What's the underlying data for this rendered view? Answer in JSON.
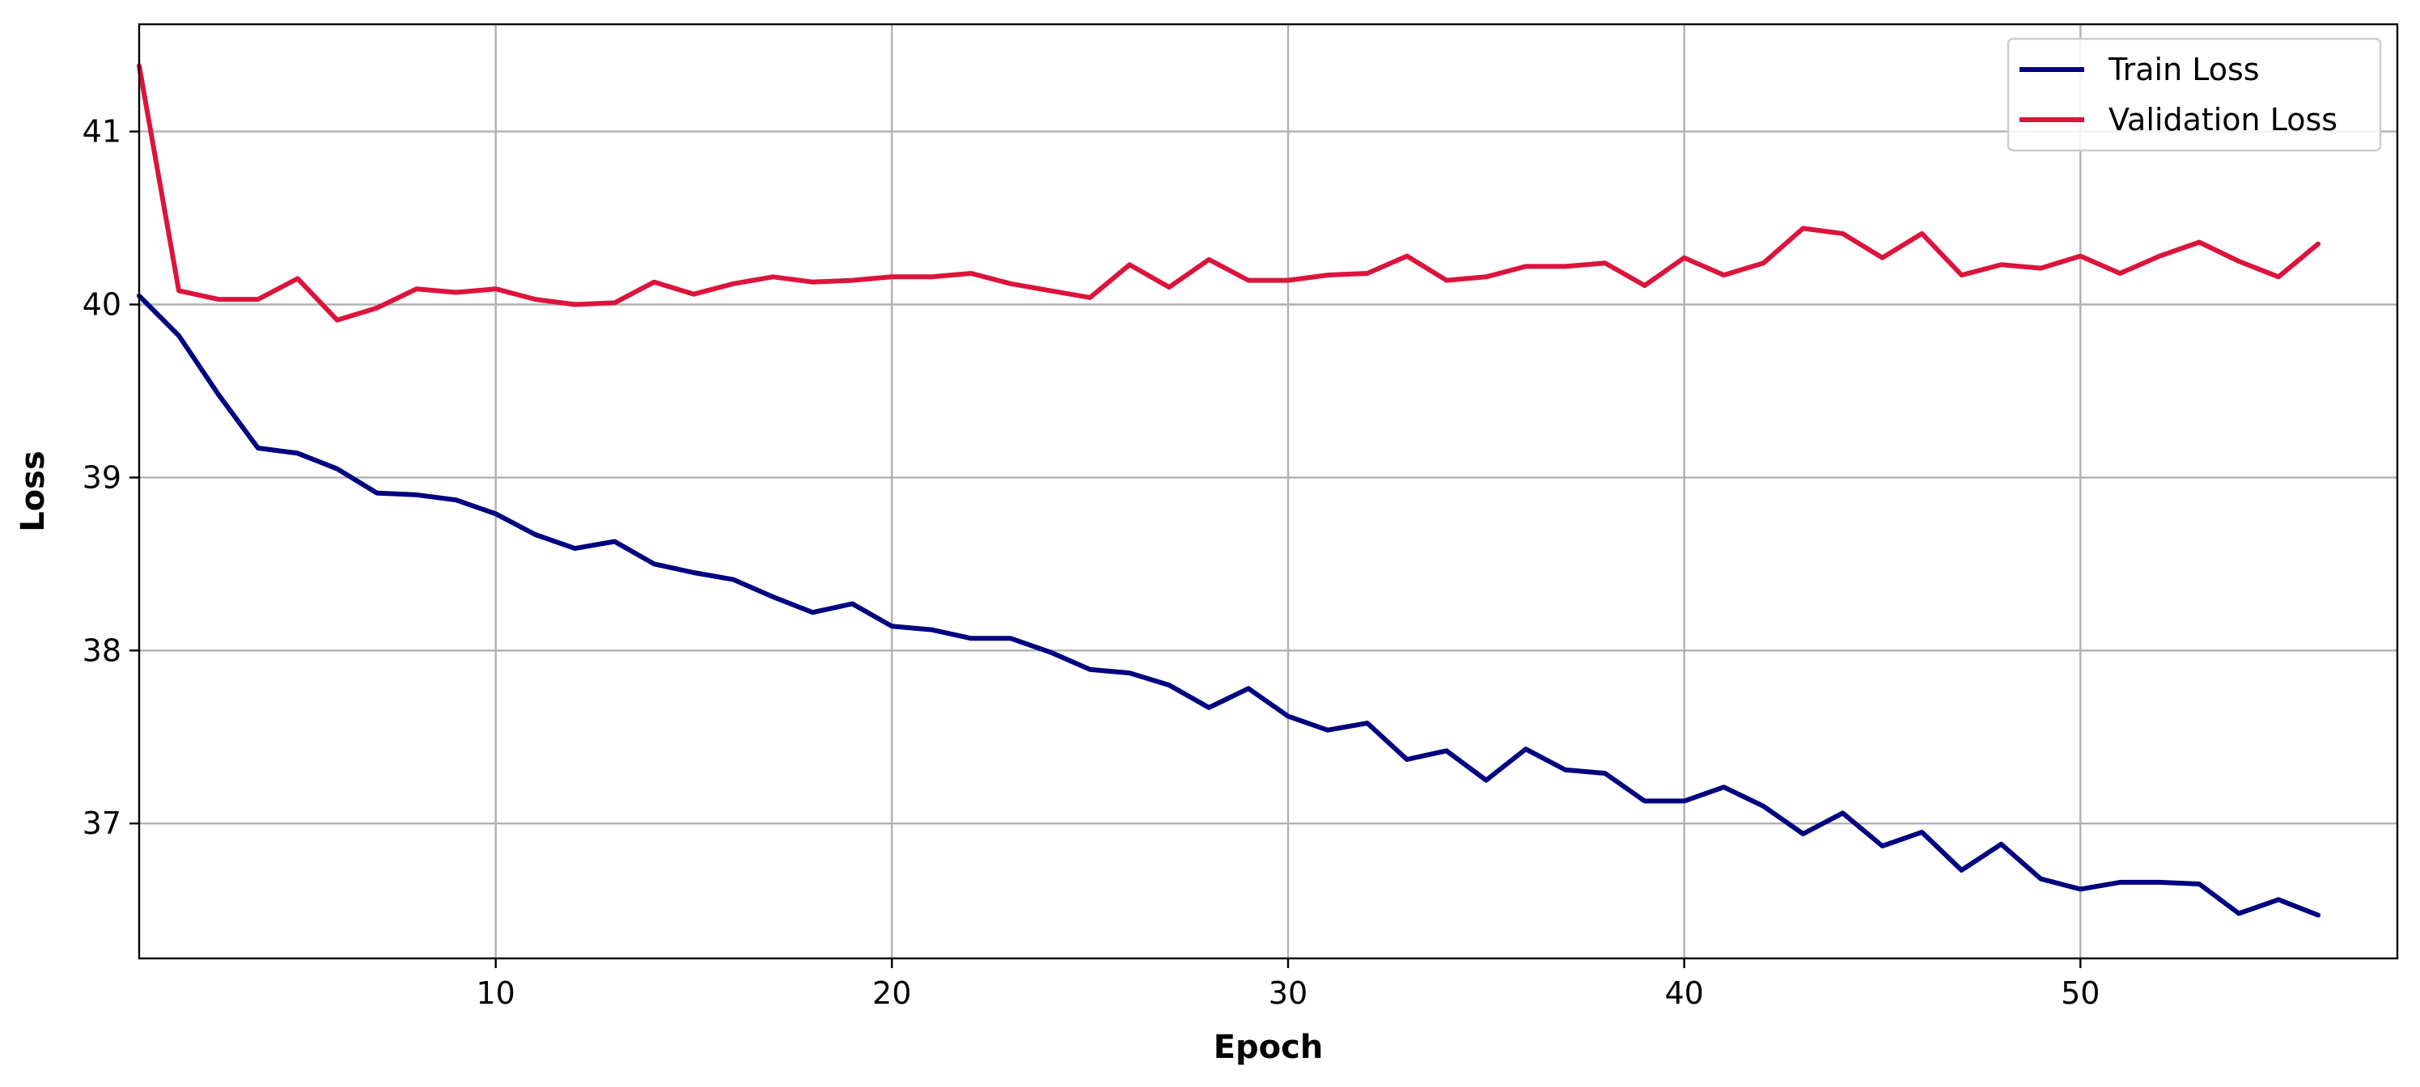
{
  "chart_data": {
    "type": "line",
    "title": "",
    "xlabel": "Epoch",
    "ylabel": "Loss",
    "xlim": [
      1,
      58
    ],
    "ylim": [
      36.22,
      41.62
    ],
    "xticks": [
      10,
      20,
      30,
      40,
      50
    ],
    "yticks": [
      37,
      38,
      39,
      40,
      41
    ],
    "grid": true,
    "legend_position": "top-right",
    "x": [
      1,
      2,
      3,
      4,
      5,
      6,
      7,
      8,
      9,
      10,
      11,
      12,
      13,
      14,
      15,
      16,
      17,
      18,
      19,
      20,
      21,
      22,
      23,
      24,
      25,
      26,
      27,
      28,
      29,
      30,
      31,
      32,
      33,
      34,
      35,
      36,
      37,
      38,
      39,
      40,
      41,
      42,
      43,
      44,
      45,
      46,
      47,
      48,
      49,
      50,
      51,
      52,
      53,
      54,
      55,
      56
    ],
    "series": [
      {
        "name": "Train Loss",
        "color": "#000080",
        "values": [
          40.05,
          39.82,
          39.48,
          39.17,
          39.14,
          39.05,
          38.91,
          38.9,
          38.87,
          38.79,
          38.67,
          38.59,
          38.63,
          38.5,
          38.45,
          38.41,
          38.31,
          38.22,
          38.27,
          38.14,
          38.12,
          38.07,
          38.07,
          37.99,
          37.89,
          37.87,
          37.8,
          37.67,
          37.78,
          37.62,
          37.54,
          37.58,
          37.37,
          37.42,
          37.25,
          37.43,
          37.31,
          37.29,
          37.13,
          37.13,
          37.21,
          37.1,
          36.94,
          37.06,
          36.87,
          36.95,
          36.73,
          36.88,
          36.68,
          36.62,
          36.66,
          36.66,
          36.65,
          36.48,
          36.56,
          36.47
        ]
      },
      {
        "name": "Validation Loss",
        "color": "#dc143c",
        "values": [
          41.38,
          40.08,
          40.03,
          40.03,
          40.15,
          39.91,
          39.98,
          40.09,
          40.07,
          40.09,
          40.03,
          40.0,
          40.01,
          40.13,
          40.06,
          40.12,
          40.16,
          40.13,
          40.14,
          40.16,
          40.16,
          40.18,
          40.12,
          40.08,
          40.04,
          40.23,
          40.1,
          40.26,
          40.14,
          40.14,
          40.17,
          40.18,
          40.28,
          40.14,
          40.16,
          40.22,
          40.22,
          40.24,
          40.11,
          40.27,
          40.17,
          40.24,
          40.44,
          40.41,
          40.27,
          40.41,
          40.17,
          40.23,
          40.21,
          40.28,
          40.18,
          40.28,
          40.36,
          40.25,
          40.16,
          40.35
        ]
      }
    ]
  }
}
